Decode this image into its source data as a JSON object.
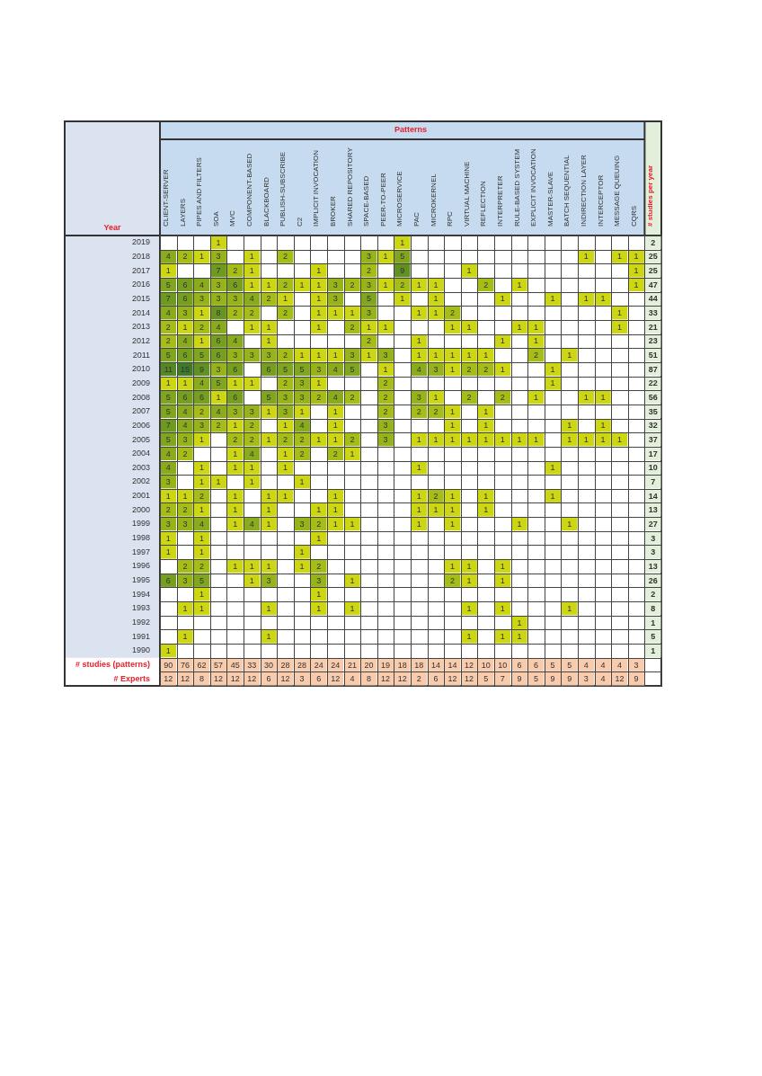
{
  "chart_data": {
    "type": "heatmap",
    "xlabel": "Patterns",
    "ylabel": "Year",
    "data_labels": true,
    "categories": [
      "CLIENT-SERVER",
      "LAYERS",
      "PIPES AND FILTERS",
      "SOA",
      "MVC",
      "COMPONENT-BASED",
      "BLACKBOARD",
      "PUBLISH-SUBSCRIBE",
      "C2",
      "IMPLICIT INVOCATION",
      "BROKER",
      "SHARED REPOSITORY",
      "SPACE-BASED",
      "PEER-TO-PEER",
      "MICROSERVICE",
      "PAC",
      "MICROKERNEL",
      "RPC",
      "VIRTUAL MACHINE",
      "REFLECTION",
      "INTERPRETER",
      "RULE-BASED SYSTEM",
      "EXPLICIT INVOCATION",
      "MASTER-SLAVE",
      "BATCH SEQUENTIAL",
      "INDIRECTION LAYER",
      "INTERCEPTOR",
      "MESSAGE QUEUING",
      "CQRS",
      "# studies per year"
    ],
    "y_categories": [
      "2019",
      "2018",
      "2017",
      "2016",
      "2015",
      "2014",
      "2013",
      "2012",
      "2011",
      "2010",
      "2009",
      "2008",
      "2007",
      "2006",
      "2005",
      "2004",
      "2003",
      "2002",
      "2001",
      "2000",
      "1999",
      "1998",
      "1997",
      "1996",
      "1995",
      "1994",
      "1993",
      "1992",
      "1991",
      "1990",
      "# studies (patterns)",
      "# Experts"
    ],
    "cells": [
      [
        null,
        null,
        null,
        1,
        null,
        null,
        null,
        null,
        null,
        null,
        null,
        null,
        null,
        null,
        1,
        null,
        null,
        null,
        null,
        null,
        null,
        null,
        null,
        null,
        null,
        null,
        null,
        null,
        null,
        2
      ],
      [
        4,
        2,
        1,
        3,
        null,
        1,
        null,
        2,
        null,
        null,
        null,
        null,
        3,
        1,
        5,
        null,
        null,
        null,
        null,
        null,
        null,
        null,
        null,
        null,
        null,
        1,
        null,
        1,
        1,
        25
      ],
      [
        1,
        null,
        null,
        7,
        2,
        1,
        null,
        null,
        null,
        1,
        null,
        null,
        2,
        null,
        9,
        null,
        null,
        null,
        1,
        null,
        null,
        null,
        null,
        null,
        null,
        null,
        null,
        null,
        1,
        25
      ],
      [
        5,
        6,
        4,
        3,
        6,
        1,
        1,
        2,
        1,
        1,
        3,
        2,
        3,
        1,
        2,
        1,
        1,
        null,
        null,
        2,
        null,
        1,
        null,
        null,
        null,
        null,
        null,
        null,
        1,
        47
      ],
      [
        7,
        6,
        3,
        3,
        3,
        4,
        2,
        1,
        null,
        1,
        3,
        null,
        5,
        null,
        1,
        null,
        1,
        null,
        null,
        null,
        1,
        null,
        null,
        1,
        null,
        1,
        1,
        null,
        null,
        44
      ],
      [
        4,
        3,
        1,
        8,
        2,
        2,
        null,
        2,
        null,
        1,
        1,
        1,
        3,
        null,
        null,
        1,
        1,
        2,
        null,
        null,
        null,
        null,
        null,
        null,
        null,
        null,
        null,
        1,
        null,
        33
      ],
      [
        2,
        1,
        2,
        4,
        null,
        1,
        1,
        null,
        null,
        1,
        null,
        2,
        1,
        1,
        null,
        null,
        null,
        1,
        1,
        null,
        null,
        1,
        1,
        null,
        null,
        null,
        null,
        1,
        null,
        21
      ],
      [
        2,
        4,
        1,
        6,
        4,
        null,
        1,
        null,
        null,
        null,
        null,
        null,
        2,
        null,
        null,
        1,
        null,
        null,
        null,
        null,
        1,
        null,
        1,
        null,
        null,
        null,
        null,
        null,
        null,
        23
      ],
      [
        5,
        6,
        5,
        6,
        3,
        3,
        3,
        2,
        1,
        1,
        1,
        3,
        1,
        3,
        null,
        1,
        1,
        1,
        1,
        1,
        null,
        null,
        2,
        null,
        1,
        null,
        null,
        null,
        null,
        51
      ],
      [
        11,
        15,
        9,
        3,
        6,
        null,
        6,
        5,
        5,
        3,
        4,
        5,
        null,
        1,
        null,
        4,
        3,
        1,
        2,
        2,
        1,
        null,
        null,
        1,
        null,
        null,
        null,
        null,
        null,
        87
      ],
      [
        1,
        1,
        4,
        5,
        1,
        1,
        null,
        2,
        3,
        1,
        null,
        null,
        null,
        2,
        null,
        null,
        null,
        null,
        null,
        null,
        null,
        null,
        null,
        1,
        null,
        null,
        null,
        null,
        null,
        22
      ],
      [
        5,
        6,
        6,
        1,
        6,
        null,
        5,
        3,
        3,
        2,
        4,
        2,
        null,
        2,
        null,
        3,
        1,
        null,
        2,
        null,
        2,
        null,
        1,
        null,
        null,
        1,
        1,
        null,
        null,
        56
      ],
      [
        5,
        4,
        2,
        4,
        3,
        3,
        1,
        3,
        1,
        null,
        1,
        null,
        null,
        2,
        null,
        2,
        2,
        1,
        null,
        1,
        null,
        null,
        null,
        null,
        null,
        null,
        null,
        null,
        null,
        35
      ],
      [
        7,
        4,
        3,
        2,
        1,
        2,
        null,
        1,
        4,
        null,
        1,
        null,
        null,
        3,
        null,
        null,
        null,
        1,
        null,
        1,
        null,
        null,
        null,
        null,
        1,
        null,
        1,
        null,
        null,
        32
      ],
      [
        5,
        3,
        1,
        null,
        2,
        2,
        1,
        2,
        2,
        1,
        1,
        2,
        null,
        3,
        null,
        1,
        1,
        1,
        1,
        1,
        1,
        1,
        1,
        null,
        1,
        1,
        1,
        1,
        null,
        37
      ],
      [
        4,
        2,
        null,
        null,
        1,
        4,
        null,
        1,
        2,
        null,
        2,
        1,
        null,
        null,
        null,
        null,
        null,
        null,
        null,
        null,
        null,
        null,
        null,
        null,
        null,
        null,
        null,
        null,
        null,
        17
      ],
      [
        4,
        null,
        1,
        null,
        1,
        1,
        null,
        1,
        null,
        null,
        null,
        null,
        null,
        null,
        null,
        1,
        null,
        null,
        null,
        null,
        null,
        null,
        null,
        1,
        null,
        null,
        null,
        null,
        null,
        10
      ],
      [
        3,
        null,
        1,
        1,
        null,
        1,
        null,
        null,
        1,
        null,
        null,
        null,
        null,
        null,
        null,
        null,
        null,
        null,
        null,
        null,
        null,
        null,
        null,
        null,
        null,
        null,
        null,
        null,
        null,
        7
      ],
      [
        1,
        1,
        2,
        null,
        1,
        null,
        1,
        1,
        null,
        null,
        1,
        null,
        null,
        null,
        null,
        1,
        2,
        1,
        null,
        1,
        null,
        null,
        null,
        1,
        null,
        null,
        null,
        null,
        null,
        14
      ],
      [
        2,
        2,
        1,
        null,
        1,
        null,
        1,
        null,
        null,
        1,
        1,
        null,
        null,
        null,
        null,
        1,
        1,
        1,
        null,
        1,
        null,
        null,
        null,
        null,
        null,
        null,
        null,
        null,
        null,
        13
      ],
      [
        3,
        3,
        4,
        null,
        1,
        4,
        1,
        null,
        3,
        2,
        1,
        1,
        null,
        null,
        null,
        1,
        null,
        1,
        null,
        null,
        null,
        1,
        null,
        null,
        1,
        null,
        null,
        null,
        null,
        27
      ],
      [
        1,
        null,
        1,
        null,
        null,
        null,
        null,
        null,
        null,
        1,
        null,
        null,
        null,
        null,
        null,
        null,
        null,
        null,
        null,
        null,
        null,
        null,
        null,
        null,
        null,
        null,
        null,
        null,
        null,
        3
      ],
      [
        1,
        null,
        1,
        null,
        null,
        null,
        null,
        null,
        1,
        null,
        null,
        null,
        null,
        null,
        null,
        null,
        null,
        null,
        null,
        null,
        null,
        null,
        null,
        null,
        null,
        null,
        null,
        null,
        null,
        3
      ],
      [
        null,
        2,
        2,
        null,
        1,
        1,
        1,
        null,
        1,
        2,
        null,
        null,
        null,
        null,
        null,
        null,
        null,
        1,
        1,
        null,
        1,
        null,
        null,
        null,
        null,
        null,
        null,
        null,
        null,
        13
      ],
      [
        6,
        3,
        5,
        null,
        null,
        1,
        3,
        null,
        null,
        3,
        null,
        1,
        null,
        null,
        null,
        null,
        null,
        2,
        1,
        null,
        1,
        null,
        null,
        null,
        null,
        null,
        null,
        null,
        null,
        26
      ],
      [
        null,
        null,
        1,
        null,
        null,
        null,
        null,
        null,
        null,
        1,
        null,
        null,
        null,
        null,
        null,
        null,
        null,
        null,
        null,
        null,
        null,
        null,
        null,
        null,
        null,
        null,
        null,
        null,
        null,
        2
      ],
      [
        null,
        1,
        1,
        null,
        null,
        null,
        1,
        null,
        null,
        1,
        null,
        1,
        null,
        null,
        null,
        null,
        null,
        null,
        1,
        null,
        1,
        null,
        null,
        null,
        1,
        null,
        null,
        null,
        null,
        8
      ],
      [
        null,
        null,
        null,
        null,
        null,
        null,
        null,
        null,
        null,
        null,
        null,
        null,
        null,
        null,
        null,
        null,
        null,
        null,
        null,
        null,
        null,
        1,
        null,
        null,
        null,
        null,
        null,
        null,
        null,
        1
      ],
      [
        null,
        1,
        null,
        null,
        null,
        null,
        1,
        null,
        null,
        null,
        null,
        null,
        null,
        null,
        null,
        null,
        null,
        null,
        1,
        null,
        1,
        1,
        null,
        null,
        null,
        null,
        null,
        null,
        null,
        5
      ],
      [
        1,
        null,
        null,
        null,
        null,
        null,
        null,
        null,
        null,
        null,
        null,
        null,
        null,
        null,
        null,
        null,
        null,
        null,
        null,
        null,
        null,
        null,
        null,
        null,
        null,
        null,
        null,
        null,
        null,
        1
      ],
      [
        90,
        76,
        62,
        57,
        45,
        33,
        30,
        28,
        28,
        24,
        24,
        21,
        20,
        19,
        18,
        18,
        14,
        14,
        12,
        10,
        10,
        6,
        6,
        5,
        5,
        4,
        4,
        4,
        3,
        null
      ],
      [
        12,
        12,
        8,
        12,
        12,
        12,
        6,
        12,
        3,
        6,
        12,
        4,
        8,
        12,
        12,
        2,
        6,
        12,
        12,
        5,
        7,
        9,
        5,
        9,
        9,
        3,
        4,
        12,
        9,
        null
      ]
    ]
  }
}
